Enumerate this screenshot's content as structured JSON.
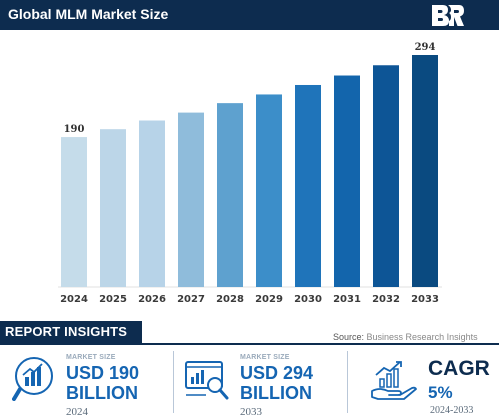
{
  "header": {
    "title": "Global MLM Market Size"
  },
  "logo": {
    "icon": "br-logo-icon"
  },
  "chart_data": {
    "type": "bar",
    "title": "Global MLM Market Size",
    "categories": [
      "2024",
      "2025",
      "2026",
      "2027",
      "2028",
      "2029",
      "2030",
      "2031",
      "2032",
      "2033"
    ],
    "values": [
      190,
      200,
      211,
      221,
      233,
      244,
      256,
      268,
      281,
      294
    ],
    "data_labels": {
      "first": "190",
      "last": "294"
    },
    "bar_colors": [
      "#c5dcea",
      "#bcd6e8",
      "#b7d3e8",
      "#8fbcdb",
      "#5ea1cf",
      "#3c8ec9",
      "#1f74ba",
      "#1365ac",
      "#0d5596",
      "#0a4a80"
    ],
    "xlabel": "",
    "ylabel": "",
    "grid": false,
    "legend": "none"
  },
  "insights": {
    "title": "REPORT INSIGHTS",
    "source_prefix": "Source: ",
    "source_name": "Business Research Insights"
  },
  "cards": [
    {
      "icon": "bar-chart-icon",
      "label": "MARKET SIZE",
      "value_line1": "USD 190",
      "value_line2": "BILLION",
      "year": "2024"
    },
    {
      "icon": "analytics-magnifier-icon",
      "label": "MARKET SIZE",
      "value_line1": "USD 294",
      "value_line2": "BILLION",
      "year": "2033"
    },
    {
      "icon": "growth-hand-icon",
      "title": "CAGR",
      "value": "5%",
      "period": "2024-2033"
    }
  ],
  "colors": {
    "navy": "#0d2c4f",
    "accent": "#1565b2",
    "axis": "#e2e2e2"
  }
}
